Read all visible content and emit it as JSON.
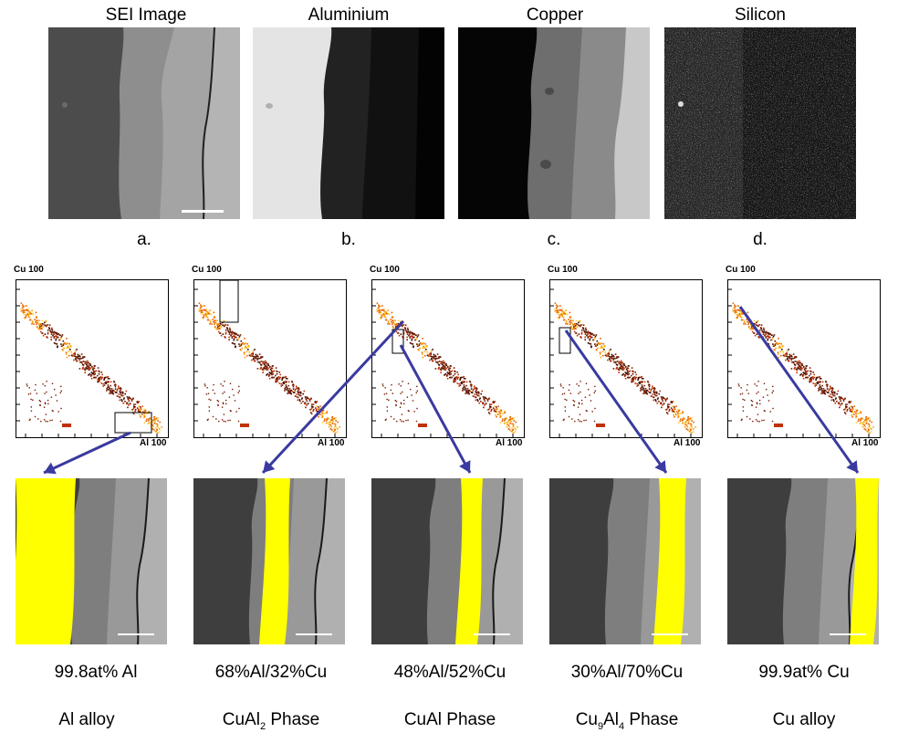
{
  "top_row": {
    "titles": [
      "SEI Image",
      "Aluminium",
      "Copper",
      "Silicon"
    ],
    "letters": [
      "a.",
      "b.",
      "c.",
      "d."
    ]
  },
  "scatter_axes": {
    "y_label": "Cu 100",
    "x_label": "Al 100"
  },
  "phases": [
    {
      "composition": "99.8at% Al",
      "name": "Al alloy"
    },
    {
      "composition": "68%Al/32%Cu",
      "name_pre": "CuAl",
      "name_sub": "2",
      "name_post": " Phase"
    },
    {
      "composition": "48%Al/52%Cu",
      "name": "CuAl Phase"
    },
    {
      "composition": "30%Al/70%Cu",
      "name_pre": "Cu",
      "name_sub": "9",
      "name_mid": "Al",
      "name_sub2": "4",
      "name_post": " Phase"
    },
    {
      "composition": "99.9at% Cu",
      "name": "Cu alloy"
    }
  ],
  "colors": {
    "highlight": "#ffff00",
    "arrow": "#3a3aa0"
  }
}
